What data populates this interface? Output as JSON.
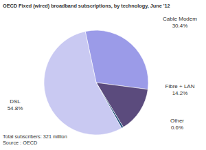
{
  "chart_data": {
    "type": "pie",
    "title": "OECD Fixed (wired) broadband subscriptions, by technology, June '12",
    "categories": [
      "Cable Modem",
      "Fibre + LAN",
      "Other",
      "DSL"
    ],
    "values": [
      30.4,
      14.2,
      0.6,
      54.8
    ],
    "value_labels": [
      "30.4%",
      "14.2%",
      "0.6%",
      "54.8%"
    ],
    "colors": [
      "#9b9be8",
      "#5b4b7d",
      "#1f4e79",
      "#c9c9f2"
    ],
    "data_labels": true,
    "annotations": [
      "Total subscribers: 321 million",
      "Source : OECD"
    ]
  }
}
